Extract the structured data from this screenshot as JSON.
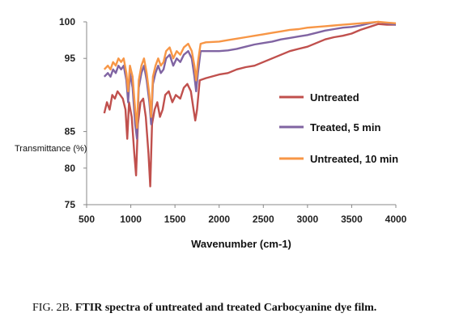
{
  "chart_data": {
    "type": "line",
    "xlabel": "Wavenumber (cm-1)",
    "ylabel": "Transmittance (%)",
    "xlim": [
      500,
      4000
    ],
    "ylim": [
      75,
      100
    ],
    "x_ticks": [
      "500",
      "1000",
      "1500",
      "2000",
      "2500",
      "3000",
      "3500",
      "4000"
    ],
    "y_ticks": [
      "75",
      "80",
      "85",
      "95",
      "100"
    ],
    "legend_position": "right",
    "series": [
      {
        "name": "Untreated",
        "color": "#c0504d",
        "points": [
          [
            700,
            87.5
          ],
          [
            730,
            89
          ],
          [
            760,
            88
          ],
          [
            790,
            90
          ],
          [
            820,
            89.5
          ],
          [
            850,
            90.5
          ],
          [
            880,
            90
          ],
          [
            910,
            89.5
          ],
          [
            940,
            88
          ],
          [
            960,
            84
          ],
          [
            980,
            89
          ],
          [
            1010,
            87
          ],
          [
            1040,
            82
          ],
          [
            1060,
            79
          ],
          [
            1080,
            86
          ],
          [
            1110,
            89
          ],
          [
            1140,
            89.5
          ],
          [
            1170,
            87
          ],
          [
            1200,
            82
          ],
          [
            1220,
            77.5
          ],
          [
            1240,
            86
          ],
          [
            1270,
            88
          ],
          [
            1300,
            89
          ],
          [
            1330,
            87
          ],
          [
            1360,
            88
          ],
          [
            1390,
            90
          ],
          [
            1430,
            90.5
          ],
          [
            1470,
            89
          ],
          [
            1510,
            90
          ],
          [
            1560,
            89.5
          ],
          [
            1600,
            91
          ],
          [
            1640,
            91.5
          ],
          [
            1680,
            90.5
          ],
          [
            1710,
            88
          ],
          [
            1730,
            86.5
          ],
          [
            1750,
            88
          ],
          [
            1780,
            92
          ],
          [
            1850,
            92.3
          ],
          [
            2000,
            92.8
          ],
          [
            2100,
            93
          ],
          [
            2200,
            93.5
          ],
          [
            2300,
            93.8
          ],
          [
            2400,
            94
          ],
          [
            2500,
            94.5
          ],
          [
            2600,
            95
          ],
          [
            2700,
            95.5
          ],
          [
            2800,
            96
          ],
          [
            2900,
            96.3
          ],
          [
            3000,
            96.6
          ],
          [
            3100,
            97.1
          ],
          [
            3200,
            97.6
          ],
          [
            3300,
            97.9
          ],
          [
            3400,
            98.1
          ],
          [
            3500,
            98.4
          ],
          [
            3600,
            98.9
          ],
          [
            3700,
            99.3
          ],
          [
            3800,
            99.7
          ],
          [
            3900,
            99.6
          ],
          [
            4000,
            99.6
          ]
        ]
      },
      {
        "name": "Treated, 5 min",
        "color": "#8064a2",
        "points": [
          [
            700,
            92.5
          ],
          [
            740,
            93
          ],
          [
            770,
            92.5
          ],
          [
            800,
            93.5
          ],
          [
            830,
            93
          ],
          [
            860,
            94
          ],
          [
            890,
            93.5
          ],
          [
            920,
            94
          ],
          [
            950,
            92
          ],
          [
            970,
            89
          ],
          [
            990,
            93
          ],
          [
            1020,
            91
          ],
          [
            1050,
            86
          ],
          [
            1070,
            84
          ],
          [
            1090,
            91
          ],
          [
            1120,
            93
          ],
          [
            1150,
            94
          ],
          [
            1180,
            92
          ],
          [
            1210,
            89
          ],
          [
            1230,
            86
          ],
          [
            1250,
            91.5
          ],
          [
            1280,
            93
          ],
          [
            1310,
            94
          ],
          [
            1340,
            93
          ],
          [
            1370,
            93.5
          ],
          [
            1400,
            95
          ],
          [
            1440,
            95.5
          ],
          [
            1480,
            94
          ],
          [
            1520,
            95
          ],
          [
            1560,
            94.5
          ],
          [
            1600,
            95.5
          ],
          [
            1650,
            96
          ],
          [
            1690,
            95
          ],
          [
            1720,
            92.5
          ],
          [
            1740,
            90.5
          ],
          [
            1760,
            93
          ],
          [
            1790,
            96
          ],
          [
            1850,
            96
          ],
          [
            2000,
            96
          ],
          [
            2100,
            96.1
          ],
          [
            2200,
            96.3
          ],
          [
            2300,
            96.6
          ],
          [
            2400,
            96.9
          ],
          [
            2500,
            97.1
          ],
          [
            2600,
            97.3
          ],
          [
            2700,
            97.6
          ],
          [
            2800,
            97.8
          ],
          [
            2900,
            98
          ],
          [
            3000,
            98.2
          ],
          [
            3100,
            98.5
          ],
          [
            3200,
            98.8
          ],
          [
            3300,
            99
          ],
          [
            3400,
            99.2
          ],
          [
            3500,
            99.3
          ],
          [
            3600,
            99.5
          ],
          [
            3700,
            99.8
          ],
          [
            3800,
            100
          ],
          [
            3900,
            99.8
          ],
          [
            4000,
            99.6
          ]
        ]
      },
      {
        "name": "Untreated, 10 min",
        "color": "#f79646",
        "points": [
          [
            700,
            93.5
          ],
          [
            740,
            94
          ],
          [
            770,
            93.5
          ],
          [
            800,
            94.5
          ],
          [
            830,
            94
          ],
          [
            860,
            95
          ],
          [
            890,
            94.5
          ],
          [
            920,
            95
          ],
          [
            950,
            93
          ],
          [
            970,
            90.5
          ],
          [
            990,
            94
          ],
          [
            1020,
            92.5
          ],
          [
            1050,
            88
          ],
          [
            1070,
            85.5
          ],
          [
            1090,
            92
          ],
          [
            1120,
            94
          ],
          [
            1150,
            95
          ],
          [
            1180,
            93
          ],
          [
            1210,
            90
          ],
          [
            1230,
            87
          ],
          [
            1250,
            92.5
          ],
          [
            1280,
            94
          ],
          [
            1310,
            95
          ],
          [
            1340,
            94
          ],
          [
            1370,
            94.5
          ],
          [
            1400,
            96
          ],
          [
            1440,
            96.5
          ],
          [
            1480,
            95
          ],
          [
            1520,
            96
          ],
          [
            1560,
            95.5
          ],
          [
            1600,
            96.5
          ],
          [
            1650,
            97
          ],
          [
            1690,
            96
          ],
          [
            1720,
            94
          ],
          [
            1740,
            92
          ],
          [
            1760,
            94.5
          ],
          [
            1790,
            97
          ],
          [
            1850,
            97.2
          ],
          [
            2000,
            97.3
          ],
          [
            2100,
            97.5
          ],
          [
            2200,
            97.7
          ],
          [
            2300,
            97.9
          ],
          [
            2400,
            98.1
          ],
          [
            2500,
            98.3
          ],
          [
            2600,
            98.5
          ],
          [
            2700,
            98.7
          ],
          [
            2800,
            98.9
          ],
          [
            2900,
            99
          ],
          [
            3000,
            99.2
          ],
          [
            3100,
            99.3
          ],
          [
            3200,
            99.4
          ],
          [
            3300,
            99.5
          ],
          [
            3400,
            99.6
          ],
          [
            3500,
            99.7
          ],
          [
            3600,
            99.8
          ],
          [
            3700,
            99.9
          ],
          [
            3800,
            100
          ],
          [
            3900,
            99.9
          ],
          [
            4000,
            99.8
          ]
        ]
      }
    ]
  },
  "caption": {
    "prefix": "FIG. 2B.",
    "text": "FTIR spectra of untreated and treated Carbocyanine dye film."
  }
}
